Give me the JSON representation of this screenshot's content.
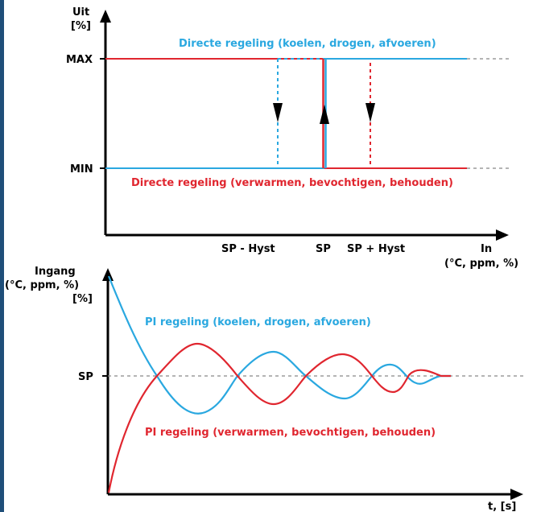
{
  "colors": {
    "sidebar": "#1f4e79",
    "blue": "#2aa8e0",
    "red": "#e0262f",
    "axis": "#000000",
    "dash": "#888888"
  },
  "top_diagram": {
    "y_axis_label_line1": "Uit",
    "y_axis_label_line2": "[%]",
    "tick_max": "MAX",
    "tick_min": "MIN",
    "blue_caption": "Directe regeling (koelen, drogen, afvoeren)",
    "red_caption": "Directe regeling (verwarmen, bevochtigen, behouden)",
    "x_tick_sp_minus_hyst": "SP - Hyst",
    "x_tick_sp": "SP",
    "x_tick_sp_plus_hyst": "SP + Hyst",
    "x_axis_label_line1": "In",
    "x_axis_label_line2": "(°C, ppm, %)"
  },
  "bottom_diagram": {
    "y_axis_label_line1": "Ingang",
    "y_axis_label_line2": "(°C, ppm, %)",
    "y_axis_label_line3": "[%]",
    "tick_sp": "SP",
    "blue_caption": "PI regeling (koelen, drogen, afvoeren)",
    "red_caption": "PI regeling (verwarmen, bevochtigen, behouden)",
    "x_axis_label": "t, [s]"
  }
}
